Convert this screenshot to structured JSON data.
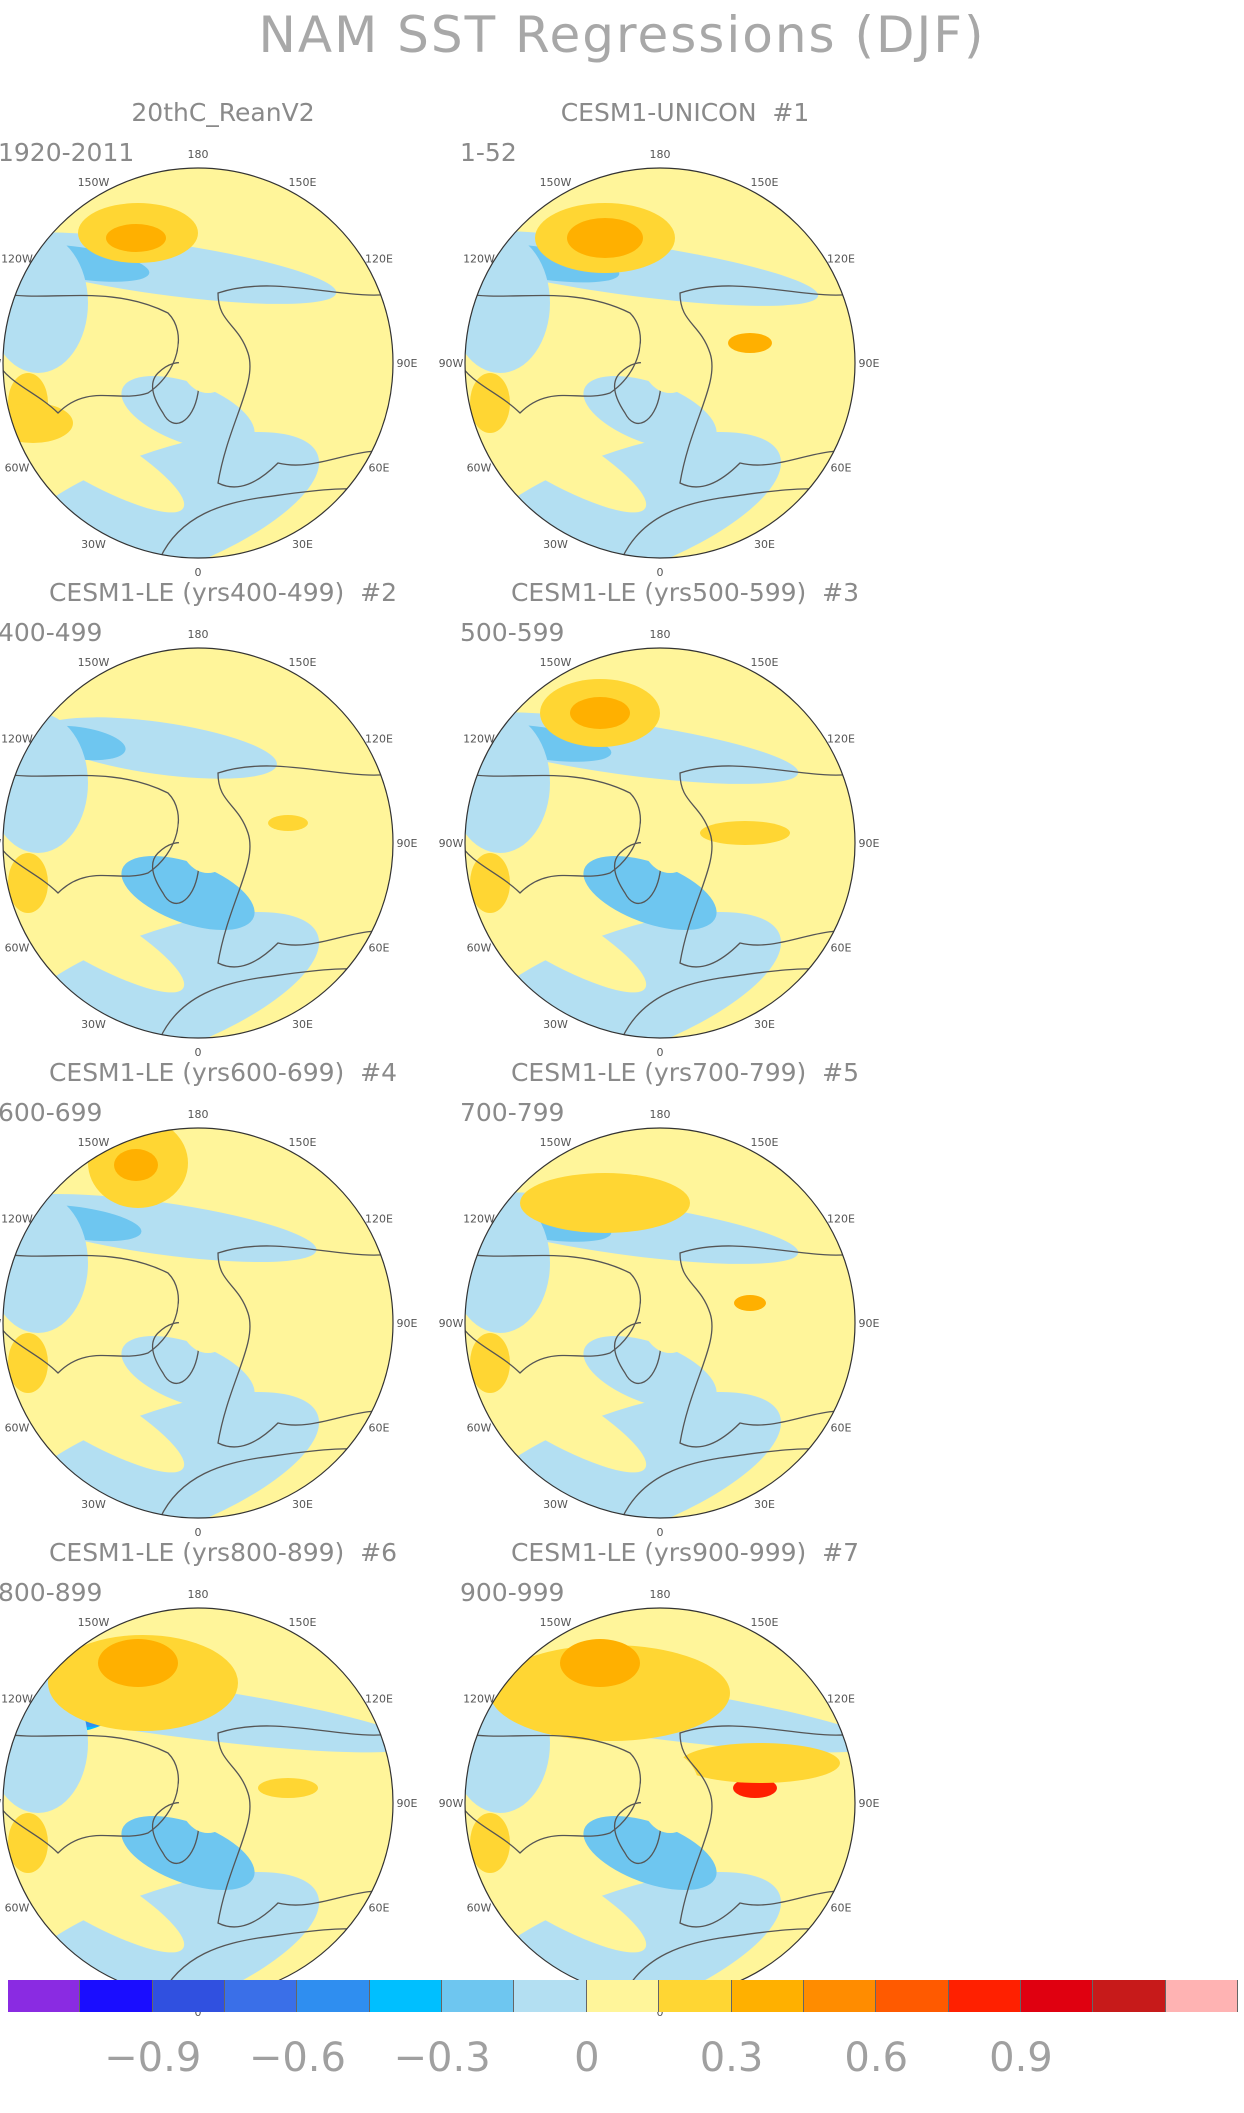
{
  "figure": {
    "title": "NAM SST Regressions (DJF)"
  },
  "panels": [
    {
      "title": "20thC_ReanV2",
      "number": "",
      "period": "1920-2011",
      "pattern": "reanalysis"
    },
    {
      "title": "CESM1-UNICON",
      "number": "#1",
      "period": "1-52",
      "pattern": "unicon"
    },
    {
      "title": "CESM1-LE (yrs400-499)",
      "number": "#2",
      "period": "400-499",
      "pattern": "le2"
    },
    {
      "title": "CESM1-LE (yrs500-599)",
      "number": "#3",
      "period": "500-599",
      "pattern": "le3"
    },
    {
      "title": "CESM1-LE (yrs600-699)",
      "number": "#4",
      "period": "600-699",
      "pattern": "le4"
    },
    {
      "title": "CESM1-LE (yrs700-799)",
      "number": "#5",
      "period": "700-799",
      "pattern": "le5"
    },
    {
      "title": "CESM1-LE (yrs800-899)",
      "number": "#6",
      "period": "800-899",
      "pattern": "le6"
    },
    {
      "title": "CESM1-LE (yrs900-999)",
      "number": "#7",
      "period": "900-999",
      "pattern": "le7"
    }
  ],
  "longitude_labels": [
    "180",
    "150E",
    "120E",
    "90E",
    "60E",
    "30E",
    "0",
    "30W",
    "60W",
    "90W",
    "120W",
    "150W"
  ],
  "colorbar": {
    "colors": [
      "#8a2be2",
      "#1a0dff",
      "#3050e0",
      "#3a6fe8",
      "#2f8ef0",
      "#00bfff",
      "#6ec6f0",
      "#b3dff2",
      "#fff59a",
      "#ffd633",
      "#ffb000",
      "#ff8c00",
      "#ff5a00",
      "#ff2000",
      "#e00010",
      "#c71a1a",
      "#ffb3b3"
    ],
    "labels": [
      "−0.9",
      "−0.6",
      "−0.3",
      "0",
      "0.3",
      "0.6",
      "0.9"
    ]
  }
}
